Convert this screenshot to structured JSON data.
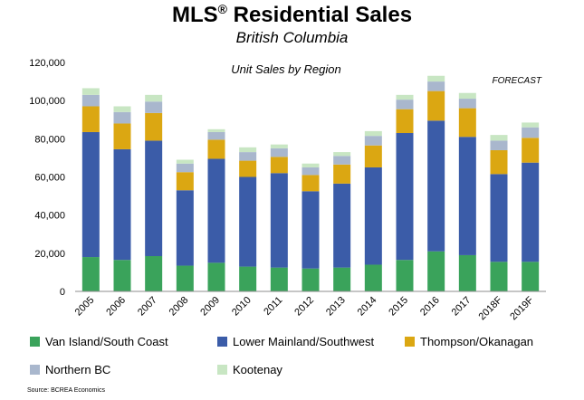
{
  "chart_data": {
    "type": "bar",
    "stacked": true,
    "title": "MLS® Residential Sales",
    "subtitle": "British Columbia",
    "inner_title": "Unit Sales by Region",
    "annotation": "FORECAST",
    "categories": [
      "2005",
      "2006",
      "2007",
      "2008",
      "2009",
      "2010",
      "2011",
      "2012",
      "2013",
      "2014",
      "2015",
      "2016",
      "2017",
      "2018F",
      "2019F"
    ],
    "ylim": [
      0,
      120000
    ],
    "yticks": [
      0,
      20000,
      40000,
      60000,
      80000,
      100000,
      120000
    ],
    "ytick_labels": [
      "0",
      "20,000",
      "40,000",
      "60,000",
      "80,000",
      "100,000",
      "120,000"
    ],
    "grid": false,
    "legend_position": "bottom",
    "series": [
      {
        "name": "Van Island/South Coast",
        "color": "#3aa35b",
        "values": [
          18000,
          16500,
          18500,
          13500,
          15000,
          13000,
          12500,
          12000,
          12500,
          14000,
          16500,
          21000,
          19000,
          15500,
          15500
        ]
      },
      {
        "name": "Lower Mainland/Southwest",
        "color": "#3b5ca8",
        "values": [
          65500,
          58000,
          60500,
          39500,
          54500,
          47000,
          49500,
          40500,
          44000,
          51000,
          66500,
          68500,
          62000,
          46000,
          52000
        ]
      },
      {
        "name": "Thompson/Okanagan",
        "color": "#dba712",
        "values": [
          13500,
          13500,
          14500,
          9500,
          10000,
          8500,
          8500,
          8500,
          10000,
          11500,
          12500,
          15500,
          15000,
          12500,
          13000
        ]
      },
      {
        "name": "Northern BC",
        "color": "#a9b7cd",
        "values": [
          6000,
          6000,
          6000,
          4500,
          4000,
          4500,
          4500,
          4000,
          4500,
          5000,
          5000,
          5000,
          5000,
          5000,
          5500
        ]
      },
      {
        "name": "Kootenay",
        "color": "#c8e6c3",
        "values": [
          3500,
          3000,
          3500,
          2000,
          1500,
          2500,
          2000,
          2000,
          2000,
          2500,
          2500,
          3000,
          3000,
          3000,
          2500
        ]
      }
    ]
  },
  "source": "Source: BCREA Economics"
}
